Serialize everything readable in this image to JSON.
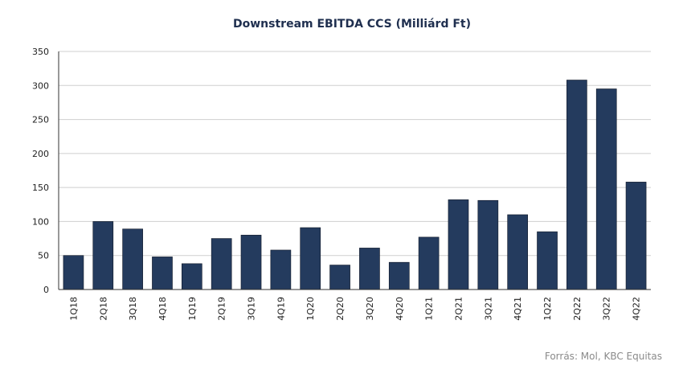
{
  "chart_data": {
    "type": "bar",
    "title": "Downstream EBITDA CCS (Milliárd Ft)",
    "xlabel": "",
    "ylabel": "",
    "categories": [
      "1Q18",
      "2Q18",
      "3Q18",
      "4Q18",
      "1Q19",
      "2Q19",
      "3Q19",
      "4Q19",
      "1Q20",
      "2Q20",
      "3Q20",
      "4Q20",
      "1Q21",
      "2Q21",
      "3Q21",
      "4Q21",
      "1Q22",
      "2Q22",
      "3Q22",
      "4Q22"
    ],
    "values": [
      50,
      100,
      89,
      48,
      38,
      75,
      80,
      58,
      91,
      36,
      61,
      40,
      77,
      132,
      131,
      110,
      85,
      308,
      295,
      158
    ],
    "ylim": [
      0,
      350
    ],
    "yticks": [
      0,
      50,
      100,
      150,
      200,
      250,
      300,
      350
    ],
    "grid": true,
    "legend": "none",
    "bar_color": "#243b5e",
    "grid_color": "#cfcfcf",
    "source": "Forrás: Mol, KBC Equitas"
  }
}
